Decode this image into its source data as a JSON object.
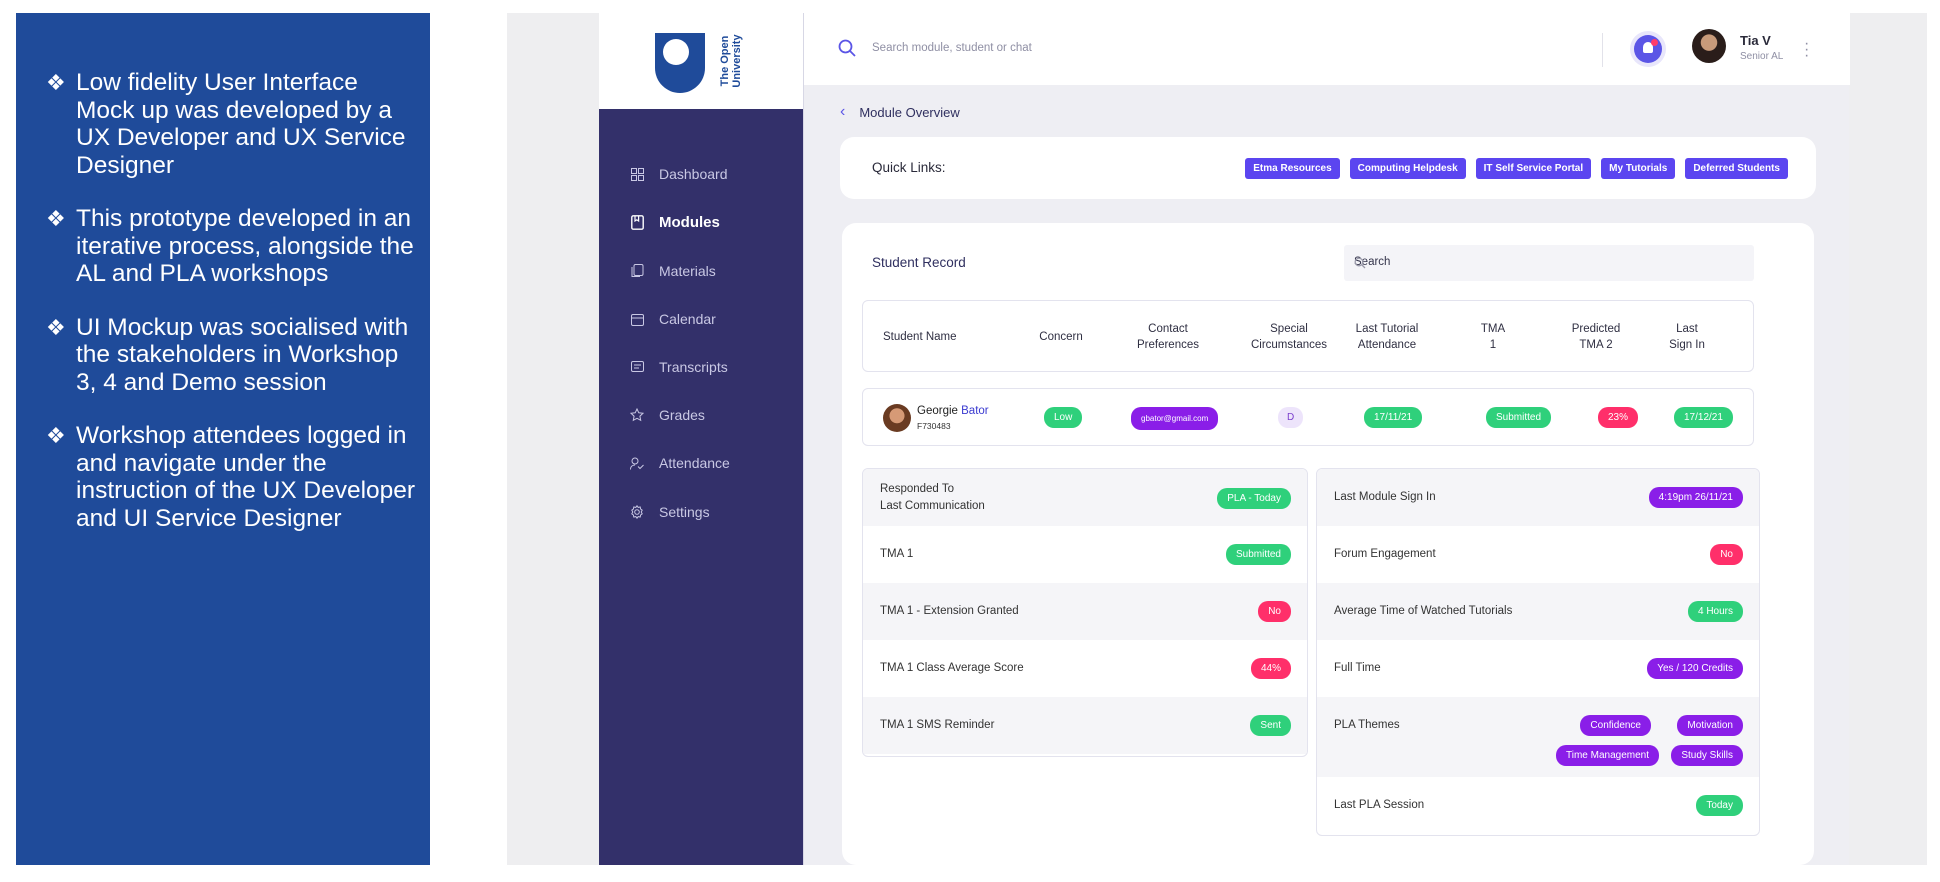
{
  "info_panel": {
    "bullets": [
      "Low fidelity User Interface Mock up was developed by a UX Developer and UX Service Designer",
      "This prototype developed in an iterative process, alongside the AL and PLA workshops",
      "UI Mockup was socialised with the stakeholders in Workshop 3, 4 and Demo session",
      "Workshop attendees logged in and navigate under the instruction of the UX Developer and UI Service Designer"
    ]
  },
  "logo": {
    "line1": "The Open",
    "line2": "University"
  },
  "sidebar": {
    "items": [
      {
        "label": "Dashboard",
        "icon": "grid-icon"
      },
      {
        "label": "Modules",
        "icon": "book-icon",
        "active": true
      },
      {
        "label": "Materials",
        "icon": "materials-icon"
      },
      {
        "label": "Calendar",
        "icon": "calendar-icon"
      },
      {
        "label": "Transcripts",
        "icon": "transcript-icon"
      },
      {
        "label": "Grades",
        "icon": "star-icon"
      },
      {
        "label": "Attendance",
        "icon": "attendance-icon"
      },
      {
        "label": "Settings",
        "icon": "gear-icon"
      }
    ]
  },
  "topbar": {
    "search_placeholder": "Search module, student or chat",
    "user_name": "Tia V",
    "user_role": "Senior AL"
  },
  "breadcrumb": {
    "back_label": "Module Overview"
  },
  "quick_links": {
    "label": "Quick Links:",
    "links": [
      "Etma Resources",
      "Computing Helpdesk",
      "IT Self Service Portal",
      "My Tutorials",
      "Deferred Students"
    ]
  },
  "student_record": {
    "title": "Student Record",
    "search_placeholder": "Search",
    "columns": [
      "Student Name",
      "Concern",
      "Contact\nPreferences",
      "Special\nCircumstances",
      "Last Tutorial\nAttendance",
      "TMA\n1",
      "Predicted\nTMA 2",
      "Last\nSign In"
    ],
    "row": {
      "first_name": "Georgie",
      "last_name": "Bator",
      "id": "F730483",
      "concern": "Low",
      "contact": "gbator@gmail.com",
      "special": "D",
      "last_tutorial": "17/11/21",
      "tma1": "Submitted",
      "predicted_tma2": "23%",
      "last_sign_in": "17/12/21"
    },
    "left_details": [
      {
        "label_line1": "Responded To",
        "label_line2": "Last Communication",
        "value": "PLA - Today",
        "color": "green"
      },
      {
        "label_line1": "TMA 1",
        "value": "Submitted",
        "color": "green"
      },
      {
        "label_line1": "TMA 1 - Extension Granted",
        "value": "No",
        "color": "red"
      },
      {
        "label_line1": "TMA 1 Class Average Score",
        "value": "44%",
        "color": "red"
      },
      {
        "label_line1": "TMA 1 SMS Reminder",
        "value": "Sent",
        "color": "green"
      }
    ],
    "right_details": [
      {
        "label": "Last Module Sign In",
        "value": "4:19pm 26/11/21",
        "color": "purple"
      },
      {
        "label": "Forum Engagement",
        "value": "No",
        "color": "red"
      },
      {
        "label": "Average Time of Watched Tutorials",
        "value": "4 Hours",
        "color": "green"
      },
      {
        "label": "Full Time",
        "value": "Yes / 120 Credits",
        "color": "purple"
      },
      {
        "label": "PLA Themes",
        "tags": [
          "Confidence",
          "Motivation",
          "Time Management",
          "Study Skills"
        ]
      },
      {
        "label": "Last PLA Session",
        "value": "Today",
        "color": "green"
      }
    ]
  },
  "colors": {
    "info_bg": "#1f4b9a",
    "sidebar_bg": "#33306a",
    "accent": "#5b45f0",
    "green": "#2fd07b",
    "red": "#ff2f6a",
    "purple": "#8a1ee8"
  }
}
